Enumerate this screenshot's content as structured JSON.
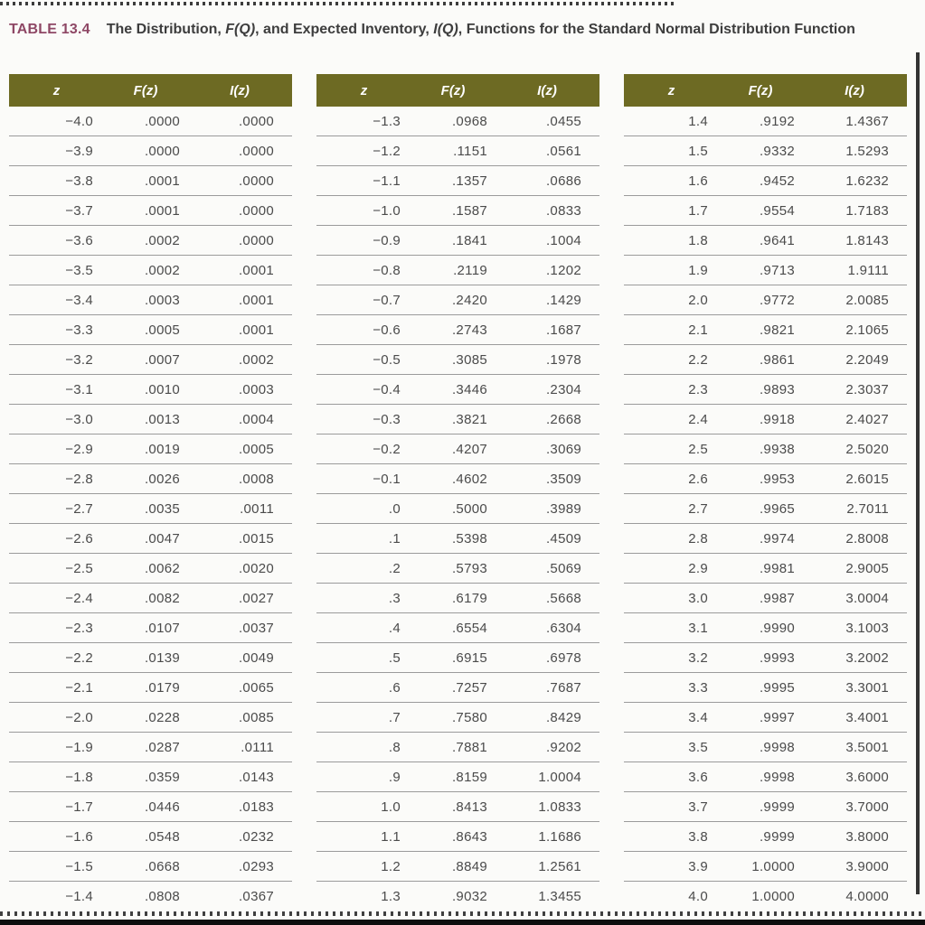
{
  "title": {
    "label": "TABLE 13.4",
    "parts": [
      {
        "text": "The Distribution, ",
        "italic": false
      },
      {
        "text": "F(Q)",
        "italic": true
      },
      {
        "text": ", and Expected Inventory, ",
        "italic": false
      },
      {
        "text": "I(Q)",
        "italic": true
      },
      {
        "text": ", Functions for the Standard Normal Distribution Function",
        "italic": false
      }
    ]
  },
  "colors": {
    "header_bg": "#6d6a23",
    "table_label": "#8e4765",
    "title_text": "#3d3d3d",
    "cell_text": "#4b4b4b",
    "row_rule": "#9b9b9b",
    "page_edge": "#333333"
  },
  "chart_data": {
    "type": "table",
    "columns": [
      "z",
      "F(z)",
      "I(z)"
    ],
    "groups": [
      {
        "rows": [
          [
            "−4.0",
            ".0000",
            ".0000"
          ],
          [
            "−3.9",
            ".0000",
            ".0000"
          ],
          [
            "−3.8",
            ".0001",
            ".0000"
          ],
          [
            "−3.7",
            ".0001",
            ".0000"
          ],
          [
            "−3.6",
            ".0002",
            ".0000"
          ],
          [
            "−3.5",
            ".0002",
            ".0001"
          ],
          [
            "−3.4",
            ".0003",
            ".0001"
          ],
          [
            "−3.3",
            ".0005",
            ".0001"
          ],
          [
            "−3.2",
            ".0007",
            ".0002"
          ],
          [
            "−3.1",
            ".0010",
            ".0003"
          ],
          [
            "−3.0",
            ".0013",
            ".0004"
          ],
          [
            "−2.9",
            ".0019",
            ".0005"
          ],
          [
            "−2.8",
            ".0026",
            ".0008"
          ],
          [
            "−2.7",
            ".0035",
            ".0011"
          ],
          [
            "−2.6",
            ".0047",
            ".0015"
          ],
          [
            "−2.5",
            ".0062",
            ".0020"
          ],
          [
            "−2.4",
            ".0082",
            ".0027"
          ],
          [
            "−2.3",
            ".0107",
            ".0037"
          ],
          [
            "−2.2",
            ".0139",
            ".0049"
          ],
          [
            "−2.1",
            ".0179",
            ".0065"
          ],
          [
            "−2.0",
            ".0228",
            ".0085"
          ],
          [
            "−1.9",
            ".0287",
            ".0111"
          ],
          [
            "−1.8",
            ".0359",
            ".0143"
          ],
          [
            "−1.7",
            ".0446",
            ".0183"
          ],
          [
            "−1.6",
            ".0548",
            ".0232"
          ],
          [
            "−1.5",
            ".0668",
            ".0293"
          ],
          [
            "−1.4",
            ".0808",
            ".0367"
          ]
        ]
      },
      {
        "rows": [
          [
            "−1.3",
            ".0968",
            ".0455"
          ],
          [
            "−1.2",
            ".1151",
            ".0561"
          ],
          [
            "−1.1",
            ".1357",
            ".0686"
          ],
          [
            "−1.0",
            ".1587",
            ".0833"
          ],
          [
            "−0.9",
            ".1841",
            ".1004"
          ],
          [
            "−0.8",
            ".2119",
            ".1202"
          ],
          [
            "−0.7",
            ".2420",
            ".1429"
          ],
          [
            "−0.6",
            ".2743",
            ".1687"
          ],
          [
            "−0.5",
            ".3085",
            ".1978"
          ],
          [
            "−0.4",
            ".3446",
            ".2304"
          ],
          [
            "−0.3",
            ".3821",
            ".2668"
          ],
          [
            "−0.2",
            ".4207",
            ".3069"
          ],
          [
            "−0.1",
            ".4602",
            ".3509"
          ],
          [
            ".0",
            ".5000",
            ".3989"
          ],
          [
            ".1",
            ".5398",
            ".4509"
          ],
          [
            ".2",
            ".5793",
            ".5069"
          ],
          [
            ".3",
            ".6179",
            ".5668"
          ],
          [
            ".4",
            ".6554",
            ".6304"
          ],
          [
            ".5",
            ".6915",
            ".6978"
          ],
          [
            ".6",
            ".7257",
            ".7687"
          ],
          [
            ".7",
            ".7580",
            ".8429"
          ],
          [
            ".8",
            ".7881",
            ".9202"
          ],
          [
            ".9",
            ".8159",
            "1.0004"
          ],
          [
            "1.0",
            ".8413",
            "1.0833"
          ],
          [
            "1.1",
            ".8643",
            "1.1686"
          ],
          [
            "1.2",
            ".8849",
            "1.2561"
          ],
          [
            "1.3",
            ".9032",
            "1.3455"
          ]
        ]
      },
      {
        "rows": [
          [
            "1.4",
            ".9192",
            "1.4367"
          ],
          [
            "1.5",
            ".9332",
            "1.5293"
          ],
          [
            "1.6",
            ".9452",
            "1.6232"
          ],
          [
            "1.7",
            ".9554",
            "1.7183"
          ],
          [
            "1.8",
            ".9641",
            "1.8143"
          ],
          [
            "1.9",
            ".9713",
            "1.9111"
          ],
          [
            "2.0",
            ".9772",
            "2.0085"
          ],
          [
            "2.1",
            ".9821",
            "2.1065"
          ],
          [
            "2.2",
            ".9861",
            "2.2049"
          ],
          [
            "2.3",
            ".9893",
            "2.3037"
          ],
          [
            "2.4",
            ".9918",
            "2.4027"
          ],
          [
            "2.5",
            ".9938",
            "2.5020"
          ],
          [
            "2.6",
            ".9953",
            "2.6015"
          ],
          [
            "2.7",
            ".9965",
            "2.7011"
          ],
          [
            "2.8",
            ".9974",
            "2.8008"
          ],
          [
            "2.9",
            ".9981",
            "2.9005"
          ],
          [
            "3.0",
            ".9987",
            "3.0004"
          ],
          [
            "3.1",
            ".9990",
            "3.1003"
          ],
          [
            "3.2",
            ".9993",
            "3.2002"
          ],
          [
            "3.3",
            ".9995",
            "3.3001"
          ],
          [
            "3.4",
            ".9997",
            "3.4001"
          ],
          [
            "3.5",
            ".9998",
            "3.5001"
          ],
          [
            "3.6",
            ".9998",
            "3.6000"
          ],
          [
            "3.7",
            ".9999",
            "3.7000"
          ],
          [
            "3.8",
            ".9999",
            "3.8000"
          ],
          [
            "3.9",
            "1.0000",
            "3.9000"
          ],
          [
            "4.0",
            "1.0000",
            "4.0000"
          ]
        ]
      }
    ]
  }
}
